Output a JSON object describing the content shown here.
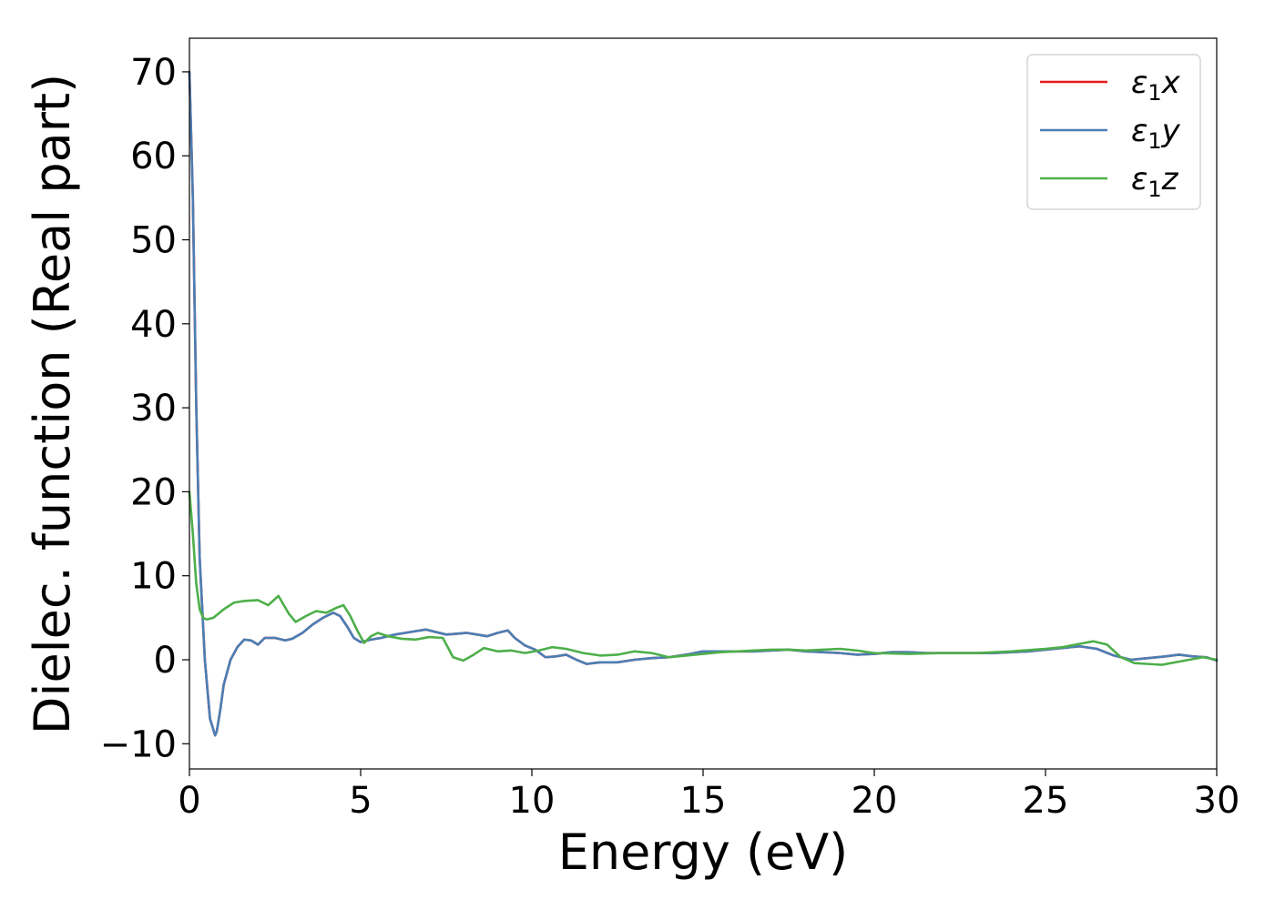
{
  "chart_data": {
    "type": "line",
    "title": "",
    "xlabel": "Energy (eV)",
    "ylabel": "Dielec. function (Real part)",
    "xlim": [
      0,
      30
    ],
    "ylim": [
      -13,
      74
    ],
    "xticks": [
      0,
      5,
      10,
      15,
      20,
      25,
      30
    ],
    "yticks": [
      -10,
      0,
      10,
      20,
      30,
      40,
      50,
      60,
      70
    ],
    "xtick_labels": [
      "0",
      "5",
      "10",
      "15",
      "20",
      "25",
      "30"
    ],
    "ytick_labels": [
      "−10",
      "0",
      "10",
      "20",
      "30",
      "40",
      "50",
      "60",
      "70"
    ],
    "grid": false,
    "legend_position": "top-right",
    "series": [
      {
        "name": "ε₁x",
        "legend": {
          "main": "ε",
          "sub": "1",
          "tail": "x"
        },
        "color": "#e41a1c",
        "x": [
          0,
          0.1,
          0.2,
          0.3,
          0.45,
          0.6,
          0.75,
          0.8,
          0.9,
          1.0,
          1.2,
          1.4,
          1.6,
          1.8,
          2.0,
          2.2,
          2.5,
          2.8,
          3.0,
          3.3,
          3.6,
          3.9,
          4.2,
          4.4,
          4.6,
          4.8,
          5.0,
          5.3,
          5.6,
          6.0,
          6.3,
          6.6,
          6.9,
          7.2,
          7.5,
          7.8,
          8.1,
          8.4,
          8.7,
          9.0,
          9.3,
          9.5,
          9.8,
          10.1,
          10.4,
          10.7,
          11.0,
          11.3,
          11.6,
          12.0,
          12.5,
          13.0,
          13.5,
          14.0,
          14.5,
          15.0,
          15.5,
          16.0,
          16.5,
          17.0,
          17.5,
          18.0,
          18.5,
          19.0,
          19.5,
          20.0,
          20.5,
          21.0,
          21.5,
          22.0,
          22.5,
          23.0,
          23.5,
          24.0,
          24.5,
          25.0,
          25.5,
          26.0,
          26.5,
          27.0,
          27.5,
          28.0,
          28.5,
          28.9,
          29.3,
          29.7,
          30.0
        ],
        "y": [
          70,
          55,
          30,
          12,
          0,
          -7,
          -9,
          -8.5,
          -6,
          -3,
          0,
          1.5,
          2.4,
          2.3,
          1.8,
          2.6,
          2.6,
          2.3,
          2.5,
          3.2,
          4.2,
          5.0,
          5.6,
          5.2,
          4.0,
          2.6,
          2.1,
          2.4,
          2.6,
          3.0,
          3.2,
          3.4,
          3.6,
          3.3,
          3.0,
          3.1,
          3.2,
          3.0,
          2.8,
          3.2,
          3.5,
          2.6,
          1.7,
          1.2,
          0.3,
          0.4,
          0.6,
          0.0,
          -0.5,
          -0.3,
          -0.3,
          0.0,
          0.2,
          0.3,
          0.6,
          1.0,
          1.0,
          1.0,
          1.0,
          1.1,
          1.2,
          1.0,
          0.9,
          0.8,
          0.6,
          0.7,
          0.9,
          0.9,
          0.8,
          0.8,
          0.8,
          0.8,
          0.8,
          0.9,
          1.0,
          1.2,
          1.4,
          1.6,
          1.3,
          0.5,
          0.0,
          0.2,
          0.4,
          0.6,
          0.4,
          0.3,
          -0.1
        ]
      },
      {
        "name": "ε₁y",
        "legend": {
          "main": "ε",
          "sub": "1",
          "tail": "y"
        },
        "color": "#4a7fb5",
        "x": [
          0,
          0.1,
          0.2,
          0.3,
          0.45,
          0.6,
          0.75,
          0.8,
          0.9,
          1.0,
          1.2,
          1.4,
          1.6,
          1.8,
          2.0,
          2.2,
          2.5,
          2.8,
          3.0,
          3.3,
          3.6,
          3.9,
          4.2,
          4.4,
          4.6,
          4.8,
          5.0,
          5.3,
          5.6,
          6.0,
          6.3,
          6.6,
          6.9,
          7.2,
          7.5,
          7.8,
          8.1,
          8.4,
          8.7,
          9.0,
          9.3,
          9.5,
          9.8,
          10.1,
          10.4,
          10.7,
          11.0,
          11.3,
          11.6,
          12.0,
          12.5,
          13.0,
          13.5,
          14.0,
          14.5,
          15.0,
          15.5,
          16.0,
          16.5,
          17.0,
          17.5,
          18.0,
          18.5,
          19.0,
          19.5,
          20.0,
          20.5,
          21.0,
          21.5,
          22.0,
          22.5,
          23.0,
          23.5,
          24.0,
          24.5,
          25.0,
          25.5,
          26.0,
          26.5,
          27.0,
          27.5,
          28.0,
          28.5,
          28.9,
          29.3,
          29.7,
          30.0
        ],
        "y": [
          70,
          55,
          30,
          12,
          0,
          -7,
          -9,
          -8.5,
          -6,
          -3,
          0,
          1.5,
          2.4,
          2.3,
          1.8,
          2.6,
          2.6,
          2.3,
          2.5,
          3.2,
          4.2,
          5.0,
          5.6,
          5.2,
          4.0,
          2.6,
          2.1,
          2.4,
          2.6,
          3.0,
          3.2,
          3.4,
          3.6,
          3.3,
          3.0,
          3.1,
          3.2,
          3.0,
          2.8,
          3.2,
          3.5,
          2.6,
          1.7,
          1.2,
          0.3,
          0.4,
          0.6,
          0.0,
          -0.5,
          -0.3,
          -0.3,
          0.0,
          0.2,
          0.3,
          0.6,
          1.0,
          1.0,
          1.0,
          1.0,
          1.1,
          1.2,
          1.0,
          0.9,
          0.8,
          0.6,
          0.7,
          0.9,
          0.9,
          0.8,
          0.8,
          0.8,
          0.8,
          0.8,
          0.9,
          1.0,
          1.2,
          1.4,
          1.6,
          1.3,
          0.5,
          0.0,
          0.2,
          0.4,
          0.6,
          0.4,
          0.3,
          -0.1
        ]
      },
      {
        "name": "ε₁z",
        "legend": {
          "main": "ε",
          "sub": "1",
          "tail": "z"
        },
        "color": "#4daf4a",
        "x": [
          0,
          0.1,
          0.2,
          0.3,
          0.4,
          0.5,
          0.7,
          1.0,
          1.3,
          1.6,
          2.0,
          2.3,
          2.6,
          2.9,
          3.1,
          3.4,
          3.7,
          4.0,
          4.3,
          4.5,
          4.7,
          4.9,
          5.1,
          5.3,
          5.5,
          5.8,
          6.2,
          6.6,
          7.0,
          7.4,
          7.7,
          8.0,
          8.3,
          8.6,
          9.0,
          9.4,
          9.8,
          10.2,
          10.6,
          11.0,
          11.5,
          12.0,
          12.5,
          13.0,
          13.5,
          14.0,
          14.5,
          15.0,
          15.5,
          16.0,
          16.5,
          17.0,
          17.5,
          18.0,
          18.5,
          19.0,
          19.5,
          20.0,
          21.0,
          22.0,
          23.0,
          24.0,
          25.0,
          25.5,
          26.0,
          26.4,
          26.8,
          27.2,
          27.6,
          28.0,
          28.4,
          28.8,
          29.2,
          29.6,
          30.0
        ],
        "y": [
          20,
          15,
          9,
          6,
          5,
          4.8,
          5.0,
          6.0,
          6.8,
          7.0,
          7.1,
          6.5,
          7.6,
          5.5,
          4.5,
          5.2,
          5.8,
          5.6,
          6.2,
          6.5,
          5.2,
          3.5,
          2.0,
          2.8,
          3.2,
          2.8,
          2.5,
          2.4,
          2.7,
          2.6,
          0.3,
          -0.1,
          0.6,
          1.4,
          1.0,
          1.1,
          0.8,
          1.1,
          1.5,
          1.3,
          0.8,
          0.5,
          0.6,
          1.0,
          0.8,
          0.3,
          0.5,
          0.7,
          0.9,
          1.0,
          1.1,
          1.2,
          1.2,
          1.1,
          1.2,
          1.3,
          1.1,
          0.8,
          0.7,
          0.8,
          0.8,
          1.0,
          1.3,
          1.5,
          1.9,
          2.2,
          1.8,
          0.3,
          -0.4,
          -0.5,
          -0.6,
          -0.3,
          0.0,
          0.3,
          0.0
        ]
      }
    ]
  }
}
